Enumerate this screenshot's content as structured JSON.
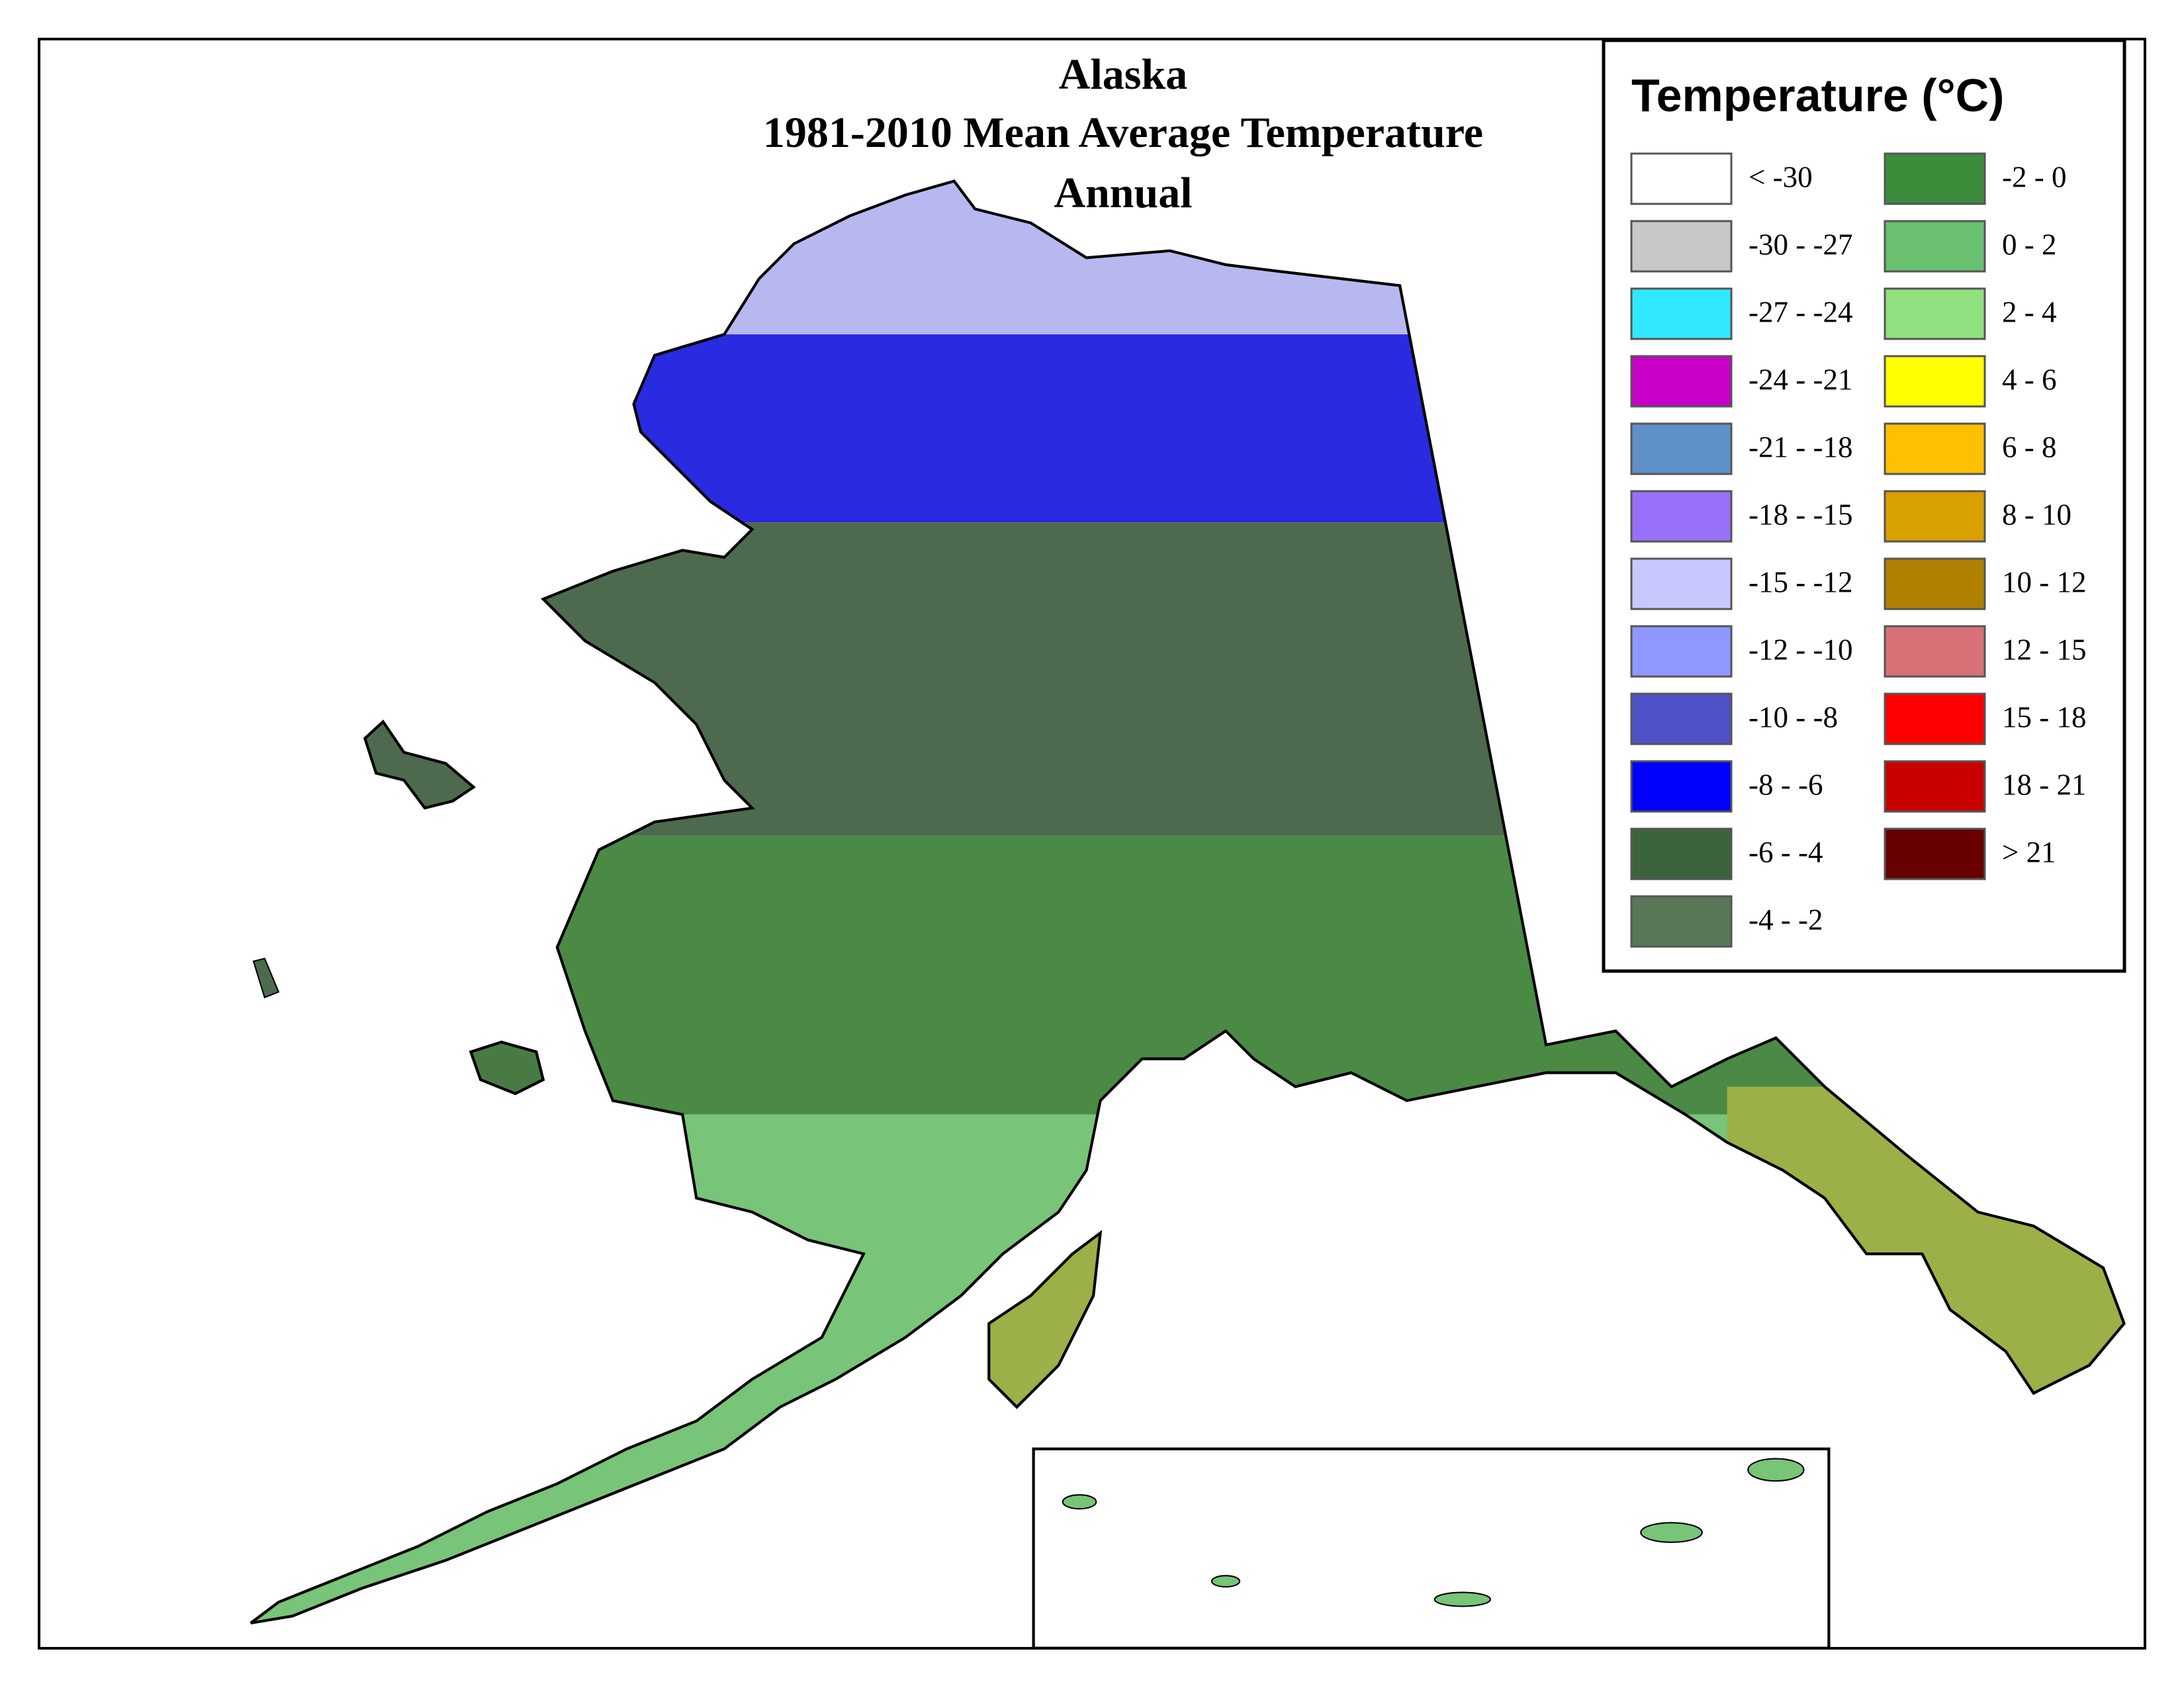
{
  "title": [
    "Alaska",
    "1981-2010 Mean Average Temperature",
    "Annual"
  ],
  "legend": {
    "title": "Temperature (°C)",
    "items": [
      {
        "label": "< -30",
        "color": "#ffffff"
      },
      {
        "label": "-30 - -27",
        "color": "#c8c8c8"
      },
      {
        "label": "-27 - -24",
        "color": "#30e8ff"
      },
      {
        "label": "-24 - -21",
        "color": "#c800c8"
      },
      {
        "label": "-21 - -18",
        "color": "#6090c8"
      },
      {
        "label": "-18 - -15",
        "color": "#9870f8"
      },
      {
        "label": "-15 - -12",
        "color": "#c8c8ff"
      },
      {
        "label": "-12 - -10",
        "color": "#9098ff"
      },
      {
        "label": "-10 - -8",
        "color": "#5050c8"
      },
      {
        "label": "-8 - -6",
        "color": "#0000ff"
      },
      {
        "label": "-6 - -4",
        "color": "#3c643c"
      },
      {
        "label": "-4 - -2",
        "color": "#587858"
      },
      {
        "label": "-2 - 0",
        "color": "#3c8c3c"
      },
      {
        "label": "0 - 2",
        "color": "#68c070"
      },
      {
        "label": "2 - 4",
        "color": "#90e080"
      },
      {
        "label": "4 - 6",
        "color": "#ffff00"
      },
      {
        "label": "6 - 8",
        "color": "#ffc000"
      },
      {
        "label": "8 - 10",
        "color": "#d8a000"
      },
      {
        "label": "10 - 12",
        "color": "#b08000"
      },
      {
        "label": "12 - 15",
        "color": "#d87078"
      },
      {
        "label": "15 - 18",
        "color": "#ff0000"
      },
      {
        "label": "18 - 21",
        "color": "#c80000"
      },
      {
        "label": "> 21",
        "color": "#680000"
      }
    ]
  }
}
